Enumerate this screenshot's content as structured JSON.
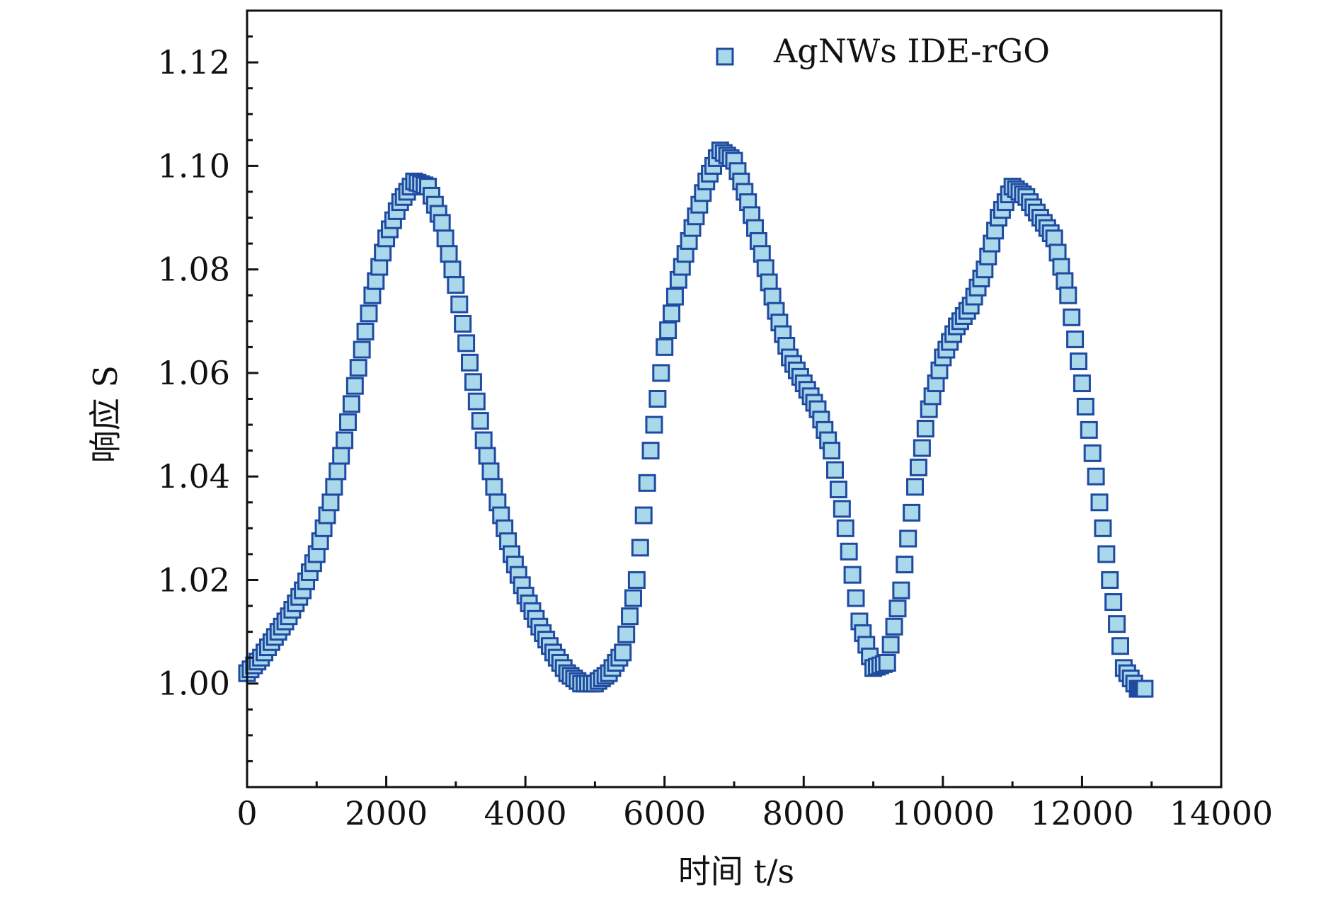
{
  "chart_data": {
    "type": "scatter",
    "title": "",
    "xlabel": "时间 t/s",
    "ylabel": "响应 S",
    "xlim": [
      0,
      14000
    ],
    "ylim": [
      0.98,
      1.13
    ],
    "x_ticks": [
      0,
      2000,
      4000,
      6000,
      8000,
      10000,
      12000,
      14000
    ],
    "x_tick_labels": [
      "0",
      "2000",
      "4000",
      "6000",
      "8000",
      "10000",
      "12000",
      "14000"
    ],
    "y_ticks": [
      1.0,
      1.02,
      1.04,
      1.06,
      1.08,
      1.1,
      1.12
    ],
    "y_tick_labels": [
      "1.00",
      "1.02",
      "1.04",
      "1.06",
      "1.08",
      "1.10",
      "1.12"
    ],
    "grid": false,
    "legend_position": "top-right",
    "series": [
      {
        "name": "AgNWs IDE-rGO",
        "marker": "square",
        "fill_color": "#a8d8ea",
        "edge_color": "#1f4aa0",
        "x": [
          0,
          200,
          400,
          600,
          800,
          1000,
          1200,
          1400,
          1600,
          1800,
          2000,
          2200,
          2400,
          2600,
          2800,
          3000,
          3200,
          3400,
          3600,
          3800,
          4000,
          4200,
          4400,
          4600,
          4800,
          5000,
          5200,
          5400,
          5600,
          5800,
          6000,
          6200,
          6400,
          6600,
          6800,
          7000,
          7200,
          7400,
          7600,
          7800,
          8000,
          8200,
          8400,
          8600,
          8800,
          9000,
          9200,
          9400,
          9600,
          9800,
          10000,
          10200,
          10400,
          10600,
          10800,
          11000,
          11200,
          11400,
          11600,
          11800,
          12000,
          12200,
          12400,
          12600,
          12800,
          12900
        ],
        "y": [
          1.002,
          1.005,
          1.009,
          1.013,
          1.018,
          1.025,
          1.035,
          1.047,
          1.061,
          1.075,
          1.086,
          1.093,
          1.097,
          1.096,
          1.089,
          1.077,
          1.062,
          1.047,
          1.035,
          1.025,
          1.017,
          1.011,
          1.006,
          1.002,
          1.0,
          1.0,
          1.002,
          1.006,
          1.02,
          1.045,
          1.065,
          1.078,
          1.088,
          1.097,
          1.103,
          1.101,
          1.093,
          1.083,
          1.072,
          1.063,
          1.058,
          1.053,
          1.045,
          1.03,
          1.012,
          1.003,
          1.004,
          1.018,
          1.038,
          1.053,
          1.063,
          1.069,
          1.073,
          1.08,
          1.09,
          1.096,
          1.094,
          1.09,
          1.086,
          1.075,
          1.058,
          1.04,
          1.02,
          1.003,
          0.999,
          0.999
        ]
      }
    ]
  }
}
